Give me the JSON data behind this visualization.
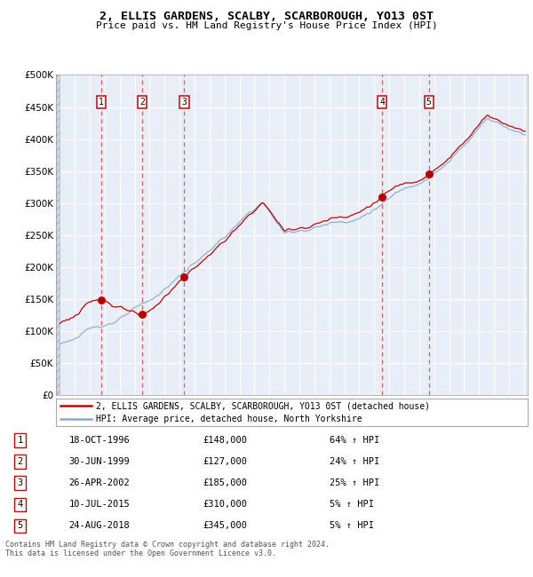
{
  "title": "2, ELLIS GARDENS, SCALBY, SCARBOROUGH, YO13 0ST",
  "subtitle": "Price paid vs. HM Land Registry's House Price Index (HPI)",
  "sales": [
    {
      "date_dec": 1996.79,
      "price": 148000,
      "label": "1"
    },
    {
      "date_dec": 1999.49,
      "price": 127000,
      "label": "2"
    },
    {
      "date_dec": 2002.32,
      "price": 185000,
      "label": "3"
    },
    {
      "date_dec": 2015.52,
      "price": 310000,
      "label": "4"
    },
    {
      "date_dec": 2018.65,
      "price": 345000,
      "label": "5"
    }
  ],
  "table_rows": [
    {
      "num": "1",
      "date": "18-OCT-1996",
      "price": "£148,000",
      "hpi": "64% ↑ HPI"
    },
    {
      "num": "2",
      "date": "30-JUN-1999",
      "price": "£127,000",
      "hpi": "24% ↑ HPI"
    },
    {
      "num": "3",
      "date": "26-APR-2002",
      "price": "£185,000",
      "hpi": "25% ↑ HPI"
    },
    {
      "num": "4",
      "date": "10-JUL-2015",
      "price": "£310,000",
      "hpi": "5% ↑ HPI"
    },
    {
      "num": "5",
      "date": "24-AUG-2018",
      "price": "£345,000",
      "hpi": "5% ↑ HPI"
    }
  ],
  "legend_property": "2, ELLIS GARDENS, SCALBY, SCARBOROUGH, YO13 0ST (detached house)",
  "legend_hpi": "HPI: Average price, detached house, North Yorkshire",
  "footer": "Contains HM Land Registry data © Crown copyright and database right 2024.\nThis data is licensed under the Open Government Licence v3.0.",
  "ylim": [
    0,
    500000
  ],
  "yticks": [
    0,
    50000,
    100000,
    150000,
    200000,
    250000,
    300000,
    350000,
    400000,
    450000,
    500000
  ],
  "xlim_start": 1993.75,
  "xlim_end": 2025.25,
  "property_color": "#cc0000",
  "hpi_color": "#88aacc",
  "dashed_color": "#dd4444",
  "plot_bg": "#e8eef8",
  "grid_color": "#ffffff",
  "hatch_color": "#d0d8e8"
}
